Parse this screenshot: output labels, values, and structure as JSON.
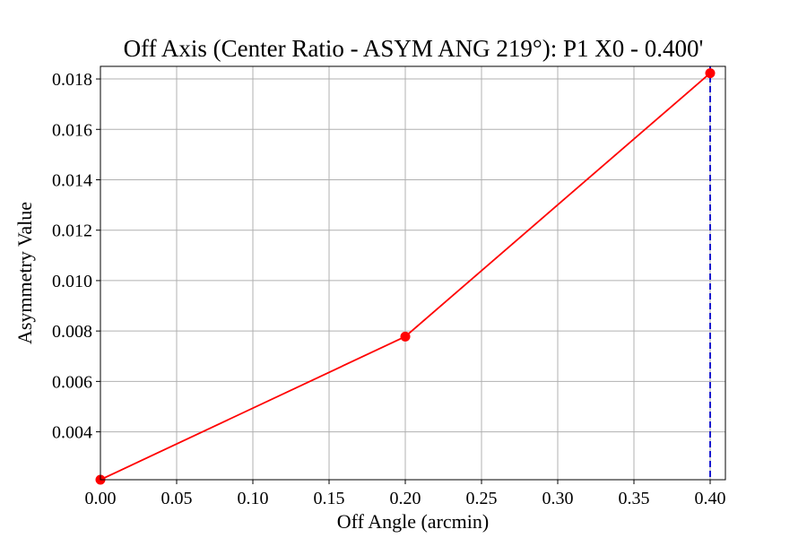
{
  "chart_data": {
    "type": "line",
    "title": "Off Axis (Center Ratio - ASYM ANG 219°): P1 X0 - 0.400'",
    "xlabel": "Off Angle (arcmin)",
    "ylabel": "Asymmetry Value",
    "xlim": [
      0.0,
      0.41
    ],
    "ylim": [
      0.0021,
      0.0185
    ],
    "x_ticks": [
      "0.00",
      "0.05",
      "0.10",
      "0.15",
      "0.20",
      "0.25",
      "0.30",
      "0.35",
      "0.40"
    ],
    "y_ticks": [
      "0.004",
      "0.006",
      "0.008",
      "0.010",
      "0.012",
      "0.014",
      "0.016",
      "0.018"
    ],
    "grid": true,
    "series": [
      {
        "x": [
          0.0,
          0.2,
          0.4
        ],
        "y": [
          0.0021,
          0.00778,
          0.01823
        ],
        "line_color": "#ff0000",
        "marker_color": "#ff0000",
        "marker": "circle"
      }
    ],
    "reference_lines": [
      {
        "orientation": "vertical",
        "x": 0.4,
        "style": "dashed",
        "color": "#0000cc"
      }
    ]
  }
}
